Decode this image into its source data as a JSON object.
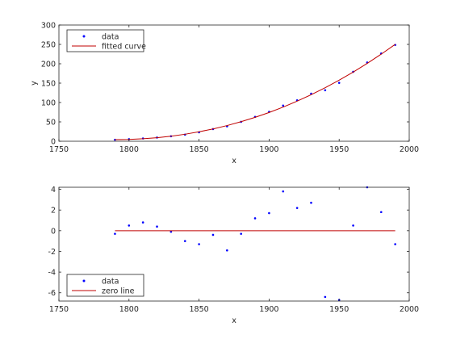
{
  "chart_data": [
    {
      "type": "scatter",
      "title": "",
      "xlabel": "x",
      "ylabel": "y",
      "xlim": [
        1750,
        2000
      ],
      "ylim": [
        0,
        300
      ],
      "x_ticks": [
        1750,
        1800,
        1850,
        1900,
        1950,
        2000
      ],
      "y_ticks": [
        0,
        50,
        100,
        150,
        200,
        250,
        300
      ],
      "legend": {
        "position": "top-left",
        "entries": [
          "data",
          "fitted curve"
        ]
      },
      "series": [
        {
          "name": "data",
          "style": "points",
          "color": "#0000ff",
          "x": [
            1790,
            1800,
            1810,
            1820,
            1830,
            1840,
            1850,
            1860,
            1870,
            1880,
            1890,
            1900,
            1910,
            1920,
            1930,
            1940,
            1950,
            1960,
            1970,
            1980,
            1990
          ],
          "y": [
            3.9,
            5.3,
            7.2,
            9.6,
            12.9,
            17.1,
            23.1,
            31.4,
            38.6,
            50.2,
            62.9,
            76.0,
            92.0,
            105.7,
            122.8,
            131.7,
            150.7,
            179.3,
            203.2,
            226.5,
            248.7
          ]
        },
        {
          "name": "fitted curve",
          "style": "line",
          "color": "#c00000",
          "x": [
            1790,
            1800,
            1810,
            1820,
            1830,
            1840,
            1850,
            1860,
            1870,
            1880,
            1890,
            1900,
            1910,
            1920,
            1930,
            1940,
            1950,
            1960,
            1970,
            1980,
            1990
          ],
          "y": [
            4.2,
            4.8,
            6.4,
            9.1,
            13.0,
            18.1,
            24.4,
            31.8,
            40.5,
            50.5,
            61.7,
            74.2,
            88.1,
            103.5,
            120.1,
            138.2,
            157.6,
            178.6,
            201.0,
            224.8,
            250.1
          ]
        }
      ]
    },
    {
      "type": "scatter",
      "title": "",
      "xlabel": "x",
      "ylabel": "",
      "xlim": [
        1750,
        2000
      ],
      "ylim": [
        -6.8,
        4.2
      ],
      "x_ticks": [
        1750,
        1800,
        1850,
        1900,
        1950,
        2000
      ],
      "y_ticks": [
        -6,
        -4,
        -2,
        0,
        2,
        4
      ],
      "legend": {
        "position": "bottom-left",
        "entries": [
          "data",
          "zero line"
        ]
      },
      "series": [
        {
          "name": "data",
          "style": "points",
          "color": "#0000ff",
          "x": [
            1790,
            1800,
            1810,
            1820,
            1830,
            1840,
            1850,
            1860,
            1870,
            1880,
            1890,
            1900,
            1910,
            1920,
            1930,
            1940,
            1950,
            1960,
            1970,
            1980,
            1990
          ],
          "y": [
            -0.3,
            0.5,
            0.8,
            0.4,
            -0.1,
            -1.0,
            -1.3,
            -0.4,
            -1.9,
            -0.3,
            1.2,
            1.7,
            3.8,
            2.2,
            2.7,
            -6.4,
            -6.7,
            0.5,
            4.2,
            1.8,
            -1.3
          ]
        },
        {
          "name": "zero line",
          "style": "line",
          "color": "#c00000",
          "x": [
            1790,
            1990
          ],
          "y": [
            0,
            0
          ]
        }
      ]
    }
  ]
}
